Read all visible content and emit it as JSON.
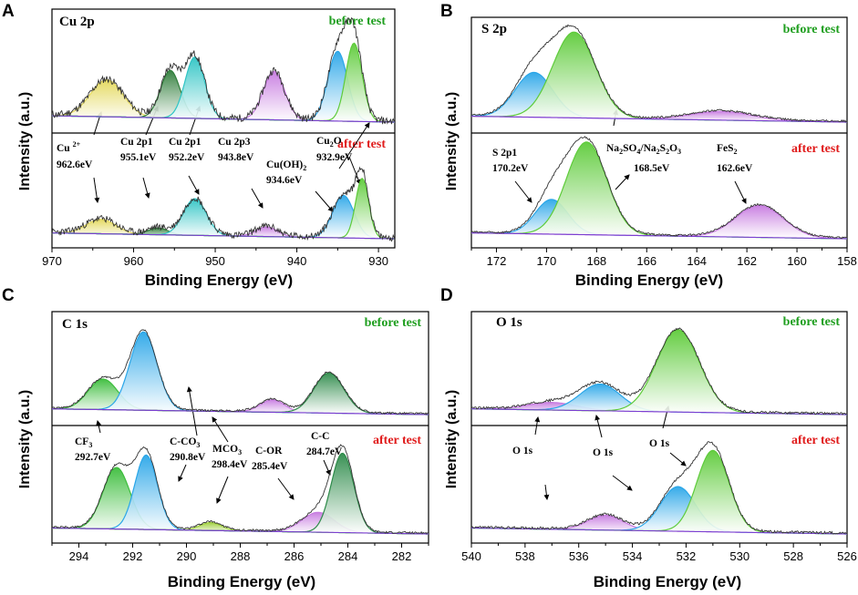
{
  "chart_data": [
    {
      "id": "A",
      "type": "line",
      "title": "Cu 2p",
      "xlabel": "Binding Energy (eV)",
      "ylabel": "Intensity (a.u.)",
      "xlim": [
        970,
        928
      ],
      "xticks": [
        970,
        960,
        950,
        940,
        930
      ],
      "grid": false,
      "legend": "none",
      "conditions": [
        {
          "label": "before test",
          "color": "#1e9e1e"
        },
        {
          "label": "after test",
          "color": "#e01b1b"
        }
      ],
      "peaks": {
        "before": [
          {
            "center": 963.3,
            "height": 0.35,
            "width": 2.0,
            "color": "#e3d85a"
          },
          {
            "center": 955.5,
            "height": 0.45,
            "width": 1.2,
            "color": "#2f7d3a"
          },
          {
            "center": 952.5,
            "height": 0.58,
            "width": 1.2,
            "color": "#2ec4c4"
          },
          {
            "center": 942.8,
            "height": 0.46,
            "width": 1.3,
            "color": "#c77be0"
          },
          {
            "center": 935.0,
            "height": 0.66,
            "width": 1.2,
            "color": "#2aa6e8"
          },
          {
            "center": 933.0,
            "height": 0.74,
            "width": 1.0,
            "color": "#5ecb3a"
          }
        ],
        "after": [
          {
            "center": 964.0,
            "height": 0.15,
            "width": 1.8,
            "color": "#e3d85a"
          },
          {
            "center": 957.0,
            "height": 0.07,
            "width": 1.2,
            "color": "#2f7d3a"
          },
          {
            "center": 952.5,
            "height": 0.38,
            "width": 1.4,
            "color": "#2ec4c4"
          },
          {
            "center": 943.7,
            "height": 0.1,
            "width": 1.3,
            "color": "#c77be0"
          },
          {
            "center": 934.3,
            "height": 0.44,
            "width": 1.3,
            "color": "#2aa6e8"
          },
          {
            "center": 932.0,
            "height": 0.62,
            "width": 0.8,
            "color": "#5ecb3a"
          }
        ]
      },
      "annotations": [
        {
          "line1": "Cu 2+",
          "line2": "962.6eV"
        },
        {
          "line1": "Cu 2p1",
          "line2": "955.1eV"
        },
        {
          "line1": "Cu 2p1",
          "line2": "952.2eV"
        },
        {
          "line1": "Cu 2p3",
          "line2": "943.8eV"
        },
        {
          "line1": "Cu(OH)2",
          "line2": "934.6eV"
        },
        {
          "line1": "Cu2O",
          "line2": "932.9eV"
        }
      ]
    },
    {
      "id": "B",
      "type": "line",
      "title": "S 2p",
      "xlabel": "Binding Energy (eV)",
      "ylabel": "Intensity (a.u.)",
      "xlim": [
        173,
        158
      ],
      "xticks": [
        172,
        170,
        168,
        166,
        164,
        162,
        160,
        158
      ],
      "grid": false,
      "legend": "none",
      "conditions": [
        {
          "label": "before test",
          "color": "#1e9e1e"
        },
        {
          "label": "after test",
          "color": "#e01b1b"
        }
      ],
      "peaks": {
        "before": [
          {
            "center": 170.5,
            "height": 0.46,
            "width": 0.75,
            "color": "#2aa6e8"
          },
          {
            "center": 168.9,
            "height": 0.88,
            "width": 0.85,
            "color": "#5ecb3a"
          },
          {
            "center": 163.0,
            "height": 0.09,
            "width": 1.2,
            "color": "#c77be0"
          }
        ],
        "after": [
          {
            "center": 169.8,
            "height": 0.36,
            "width": 0.65,
            "color": "#2aa6e8"
          },
          {
            "center": 168.4,
            "height": 0.96,
            "width": 0.8,
            "color": "#5ecb3a"
          },
          {
            "center": 161.5,
            "height": 0.33,
            "width": 0.95,
            "color": "#c77be0"
          }
        ]
      },
      "annotations": [
        {
          "line1": "S 2p1",
          "line2": "170.2eV"
        },
        {
          "line1": "Na2SO4/Na2S2O3",
          "line2": "168.5eV"
        },
        {
          "line1": "FeS2",
          "line2": "162.6eV"
        }
      ]
    },
    {
      "id": "C",
      "type": "line",
      "title": "C 1s",
      "xlabel": "Binding Energy (eV)",
      "ylabel": "Intensity (a.u.)",
      "xlim": [
        295,
        281
      ],
      "xticks": [
        294,
        292,
        290,
        288,
        286,
        284,
        282
      ],
      "grid": false,
      "legend": "none",
      "conditions": [
        {
          "label": "before test",
          "color": "#1e9e1e"
        },
        {
          "label": "after test",
          "color": "#e01b1b"
        }
      ],
      "peaks": {
        "before": [
          {
            "center": 293.1,
            "height": 0.32,
            "width": 0.55,
            "color": "#3cbd3c"
          },
          {
            "center": 291.6,
            "height": 0.82,
            "width": 0.5,
            "color": "#2aa6e8"
          },
          {
            "center": 286.8,
            "height": 0.13,
            "width": 0.45,
            "color": "#c77be0"
          },
          {
            "center": 284.7,
            "height": 0.42,
            "width": 0.55,
            "color": "#2e8b4a"
          }
        ],
        "after": [
          {
            "center": 292.6,
            "height": 0.62,
            "width": 0.5,
            "color": "#3cbd3c"
          },
          {
            "center": 291.5,
            "height": 0.75,
            "width": 0.42,
            "color": "#2aa6e8"
          },
          {
            "center": 289.1,
            "height": 0.08,
            "width": 0.4,
            "color": "#9ecf3a"
          },
          {
            "center": 285.1,
            "height": 0.2,
            "width": 0.6,
            "color": "#c77be0"
          },
          {
            "center": 284.2,
            "height": 0.8,
            "width": 0.42,
            "color": "#2e8b4a"
          }
        ]
      },
      "annotations": [
        {
          "line1": "CF3",
          "line2": "292.7eV"
        },
        {
          "line1": "C-CO3",
          "line2": "290.8eV"
        },
        {
          "line1": "MCO3",
          "line2": "298.4eV"
        },
        {
          "line1": "C-OR",
          "line2": "285.4eV"
        },
        {
          "line1": "C-C",
          "line2": "284.7eV"
        }
      ]
    },
    {
      "id": "D",
      "type": "line",
      "title": "O 1s",
      "xlabel": "Binding Energy (eV)",
      "ylabel": "Intensity (a.u.)",
      "xlim": [
        540,
        526
      ],
      "xticks": [
        540,
        538,
        536,
        534,
        532,
        530,
        528,
        526
      ],
      "grid": false,
      "legend": "none",
      "conditions": [
        {
          "label": "before test",
          "color": "#1e9e1e"
        },
        {
          "label": "after test",
          "color": "#e01b1b"
        }
      ],
      "peaks": {
        "before": [
          {
            "center": 537.0,
            "height": 0.08,
            "width": 0.9,
            "color": "#c77be0"
          },
          {
            "center": 535.2,
            "height": 0.28,
            "width": 0.75,
            "color": "#2aa6e8"
          },
          {
            "center": 532.3,
            "height": 0.86,
            "width": 0.8,
            "color": "#5ecb3a"
          }
        ],
        "after": [
          {
            "center": 535.0,
            "height": 0.15,
            "width": 0.65,
            "color": "#c77be0"
          },
          {
            "center": 532.3,
            "height": 0.45,
            "width": 0.65,
            "color": "#2aa6e8"
          },
          {
            "center": 531.0,
            "height": 0.82,
            "width": 0.6,
            "color": "#5ecb3a"
          }
        ]
      },
      "annotations": [
        {
          "line1": "O 1s",
          "line2": ""
        },
        {
          "line1": "O 1s",
          "line2": ""
        },
        {
          "line1": "O 1s",
          "line2": ""
        }
      ]
    }
  ]
}
